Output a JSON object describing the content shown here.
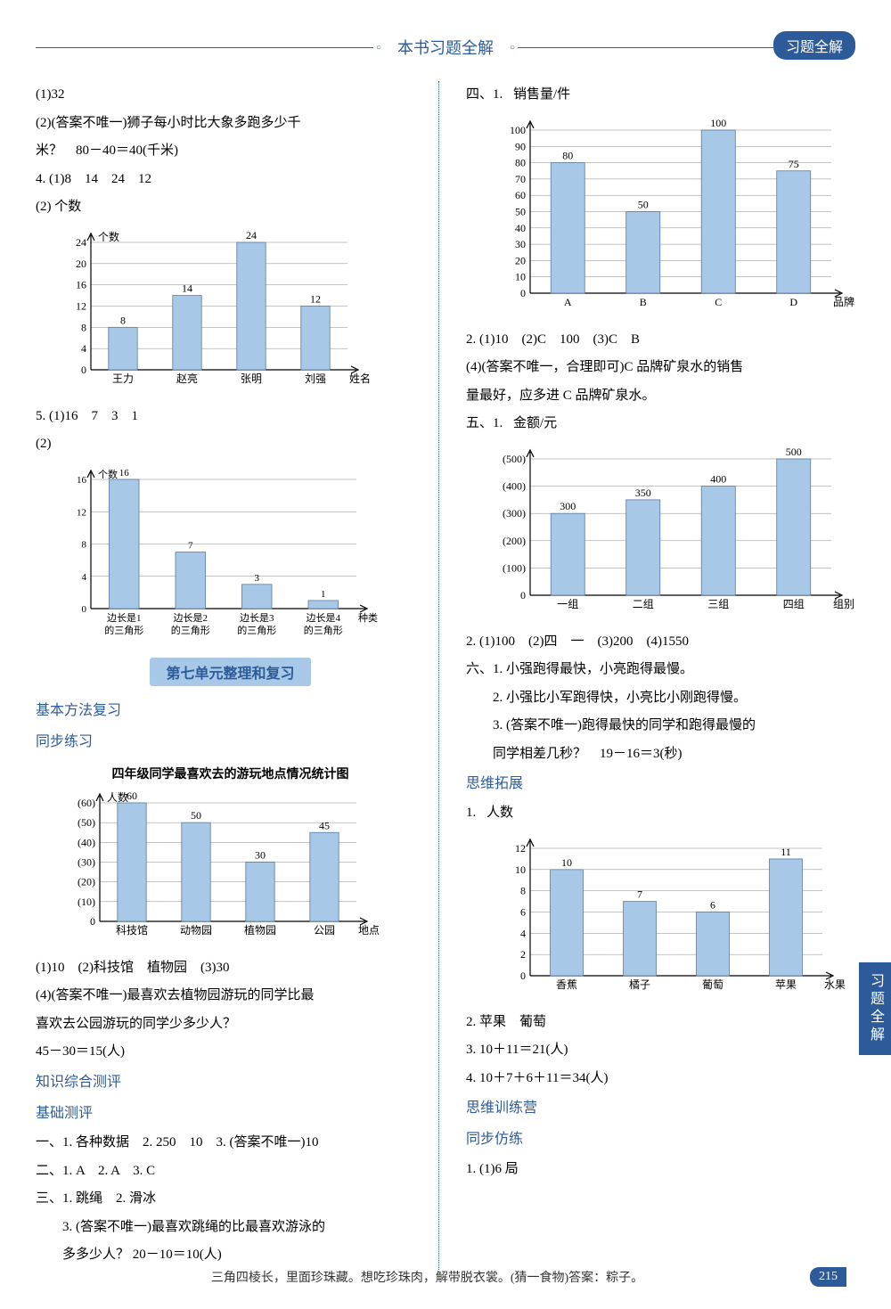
{
  "header": {
    "title": "本书习题全解",
    "badge": "习题全解"
  },
  "side_tab": "习题全解",
  "left": {
    "l1": "(1)32",
    "l2": "(2)(答案不唯一)狮子每小时比大象多跑多少千",
    "l3": "米？　80－40＝40(千米)",
    "l4": "4. (1)8　14　24　12",
    "l5": "(2) 个数",
    "chart1": {
      "ylabel": "个数",
      "xlabel": "姓名",
      "categories": [
        "王力",
        "赵亮",
        "张明",
        "刘强"
      ],
      "values": [
        8,
        14,
        24,
        12
      ],
      "ylim": [
        0,
        24
      ],
      "ytick_step": 4,
      "bar_color": "#a8c8e8",
      "grid_color": "#888",
      "axis_color": "#000",
      "font_size": 12
    },
    "l6": "5. (1)16　7　3　1",
    "l7": "(2)",
    "chart2": {
      "ylabel": "个数",
      "xlabel": "种类",
      "categories": [
        "边长是1\n的三角形",
        "边长是2\n的三角形",
        "边长是3\n的三角形",
        "边长是4\n的三角形"
      ],
      "values": [
        16,
        7,
        3,
        1
      ],
      "ylim": [
        0,
        16
      ],
      "ytick_step": 4,
      "bar_color": "#a8c8e8",
      "grid_color": "#888",
      "axis_color": "#000",
      "font_size": 11
    },
    "unit_banner": "第七单元整理和复习",
    "s1": "基本方法复习",
    "s2": "同步练习",
    "chart3_title": "四年级同学最喜欢去的游玩地点情况统计图",
    "chart3": {
      "ylabel": "人数",
      "xlabel": "地点",
      "categories": [
        "科技馆",
        "动物园",
        "植物园",
        "公园"
      ],
      "values": [
        60,
        50,
        30,
        45
      ],
      "ylim": [
        0,
        60
      ],
      "ytick_step": 10,
      "ytick_paren": true,
      "bar_color": "#a8c8e8",
      "grid_color": "#888",
      "axis_color": "#000",
      "font_size": 12
    },
    "l8": "(1)10　(2)科技馆　植物园　(3)30",
    "l9": "(4)(答案不唯一)最喜欢去植物园游玩的同学比最",
    "l10": "喜欢去公园游玩的同学少多少人？",
    "l11": "45－30＝15(人)",
    "s3": "知识综合测评",
    "s4": "基础测评",
    "l12": "一、1. 各种数据　2. 250　10　3. (答案不唯一)10",
    "l13": "二、1. A　2. A　3. C",
    "l14": "三、1. 跳绳　2. 滑冰",
    "l15": "3. (答案不唯一)最喜欢跳绳的比最喜欢游泳的",
    "l16": "多多少人？ 20－10＝10(人)"
  },
  "right": {
    "l1": "四、1.",
    "chart4": {
      "ylabel": "销售量/件",
      "xlabel": "品牌",
      "categories": [
        "A",
        "B",
        "C",
        "D"
      ],
      "values": [
        80,
        50,
        100,
        75
      ],
      "ylim": [
        0,
        100
      ],
      "ytick_step": 10,
      "bar_color": "#a8c8e8",
      "grid_color": "#888",
      "axis_color": "#000",
      "font_size": 12
    },
    "l2": "2. (1)10　(2)C　100　(3)C　B",
    "l3": "(4)(答案不唯一，合理即可)C 品牌矿泉水的销售",
    "l4": "量最好，应多进 C 品牌矿泉水。",
    "l5": "五、1.",
    "chart5": {
      "ylabel": "金额/元",
      "xlabel": "组别",
      "categories": [
        "一组",
        "二组",
        "三组",
        "四组"
      ],
      "values": [
        300,
        350,
        400,
        500
      ],
      "ylim": [
        0,
        500
      ],
      "ytick_step": 100,
      "ytick_paren": true,
      "bar_color": "#a8c8e8",
      "grid_color": "#888",
      "axis_color": "#000",
      "font_size": 12
    },
    "l6": "2. (1)100　(2)四　一　(3)200　(4)1550",
    "l7": "六、1. 小强跑得最快，小亮跑得最慢。",
    "l8": "2. 小强比小军跑得快，小亮比小刚跑得慢。",
    "l9": "3. (答案不唯一)跑得最快的同学和跑得最慢的",
    "l10": "同学相差几秒？　19－16＝3(秒)",
    "s1": "思维拓展",
    "l11": "1.",
    "chart6": {
      "ylabel": "人数",
      "xlabel": "水果",
      "categories": [
        "香蕉",
        "橘子",
        "葡萄",
        "苹果"
      ],
      "values": [
        10,
        7,
        6,
        11
      ],
      "ylim": [
        0,
        12
      ],
      "ytick_step": 2,
      "bar_color": "#a8c8e8",
      "grid_color": "#888",
      "axis_color": "#000",
      "font_size": 12
    },
    "l12": "2. 苹果　葡萄",
    "l13": "3. 10＋11＝21(人)",
    "l14": "4. 10＋7＋6＋11＝34(人)",
    "s2": "思维训练营",
    "s3": "同步仿练",
    "l15": "1. (1)6 局"
  },
  "footer": {
    "text": "三角四棱长，里面珍珠藏。想吃珍珠肉，解带脱衣裳。(猜一食物)答案：粽子。",
    "page": "215"
  }
}
